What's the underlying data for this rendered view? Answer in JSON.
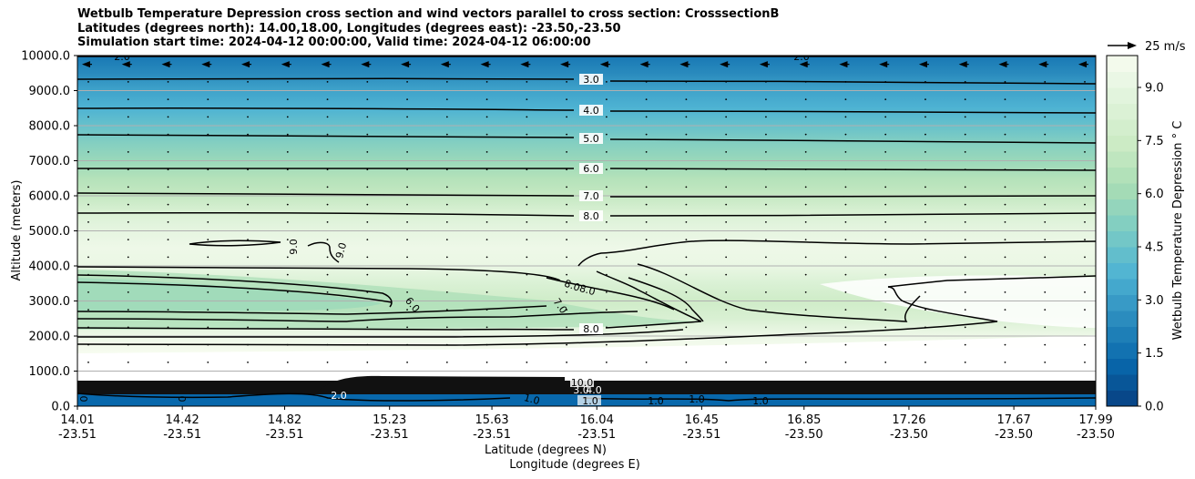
{
  "chart_data": {
    "type": "heatmap",
    "title": [
      "Wetbulb Temperature Depression cross section and wind vectors parallel to cross section: CrosssectionB",
      "Latitudes (degrees north): 14.00,18.00, Longitudes (degrees east): -23.50,-23.50",
      "Simulation start time: 2024-04-12 00:00:00, Valid time: 2024-04-12 06:00:00"
    ],
    "xlabel": "Latitude (degrees N)",
    "xlabel2": "Longitude (degrees E)",
    "ylabel": "Altitude (meters)",
    "ylim": [
      0,
      10000
    ],
    "grid": "horizontal",
    "y_ticks": [
      "0.0",
      "1000.0",
      "2000.0",
      "3000.0",
      "4000.0",
      "5000.0",
      "6000.0",
      "7000.0",
      "8000.0",
      "9000.0",
      "10000.0"
    ],
    "x_ticks": [
      {
        "lat": "14.01",
        "lon": "-23.51"
      },
      {
        "lat": "14.42",
        "lon": "-23.51"
      },
      {
        "lat": "14.82",
        "lon": "-23.51"
      },
      {
        "lat": "15.23",
        "lon": "-23.51"
      },
      {
        "lat": "15.63",
        "lon": "-23.51"
      },
      {
        "lat": "16.04",
        "lon": "-23.51"
      },
      {
        "lat": "16.45",
        "lon": "-23.51"
      },
      {
        "lat": "16.85",
        "lon": "-23.50"
      },
      {
        "lat": "17.26",
        "lon": "-23.50"
      },
      {
        "lat": "17.67",
        "lon": "-23.50"
      },
      {
        "lat": "17.99",
        "lon": "-23.50"
      }
    ],
    "colorbar": {
      "label": "Wetbulb Temperature Depression $^\\circ$ C",
      "ticks": [
        "0.0",
        "1.5",
        "3.0",
        "4.5",
        "6.0",
        "7.5",
        "9.0"
      ],
      "range": [
        0,
        9.9
      ]
    },
    "quiver_key": "25 m/s",
    "profile": {
      "altitude_m": [
        0,
        500,
        700,
        1000,
        1500,
        2000,
        2500,
        3000,
        3500,
        4000,
        4500,
        5000,
        5500,
        6000,
        6500,
        7000,
        7500,
        8000,
        8500,
        9000,
        9500,
        10000
      ],
      "depression_c": [
        0.7,
        1.2,
        9.8,
        9.9,
        9.9,
        9.4,
        8.2,
        7.6,
        8.3,
        9.2,
        9.4,
        9.0,
        8.3,
        7.2,
        6.6,
        5.8,
        5.2,
        4.4,
        3.7,
        3.2,
        2.4,
        1.8
      ]
    },
    "contour_labels": [
      "3.0",
      "4.0",
      "5.0",
      "6.0",
      "7.0",
      "8.0",
      "9.0",
      "9.0",
      "6.0",
      "7.0",
      "8.0",
      "8.0",
      "8.0",
      "2.0",
      "2.0",
      "1.0",
      "1.0",
      "1.0",
      "1.0",
      "1.0",
      "10.0",
      "3.0",
      "4.0",
      "2.0",
      "0",
      "0"
    ]
  },
  "colors": {
    "scale": [
      "#084081",
      "#0868ac",
      "#2b8cbe",
      "#4eb3d3",
      "#7bccc4",
      "#a8ddb5",
      "#ccebc5",
      "#e0f3db",
      "#f7fcf0"
    ],
    "contour": "#000000",
    "grid": "#b0b0b0"
  }
}
